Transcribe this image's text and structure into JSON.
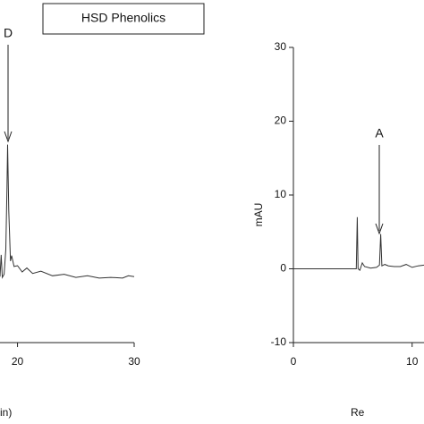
{
  "figure_title": "HSD Phenolics",
  "chart_data": [
    {
      "type": "line",
      "annotation": "D",
      "x_label": "in)",
      "x": [
        18.5,
        18.6,
        18.7,
        18.85,
        19.0,
        19.1,
        19.15,
        19.25,
        19.4,
        19.5,
        19.7,
        20.0,
        20.4,
        20.8,
        21.3,
        22,
        23,
        24,
        25,
        26,
        27,
        28,
        29,
        29.5,
        30
      ],
      "series": [
        {
          "color": "#333333",
          "values": [
            0.5,
            3.3,
            0.4,
            0.8,
            4,
            12,
            17.5,
            9,
            2.5,
            3.2,
            1.8,
            1.9,
            1.1,
            1.6,
            0.9,
            1.2,
            0.6,
            0.8,
            0.4,
            0.6,
            0.3,
            0.4,
            0.3,
            0.6,
            0.5
          ]
        }
      ],
      "xlim": [
        18.5,
        30
      ],
      "xticks": [
        20,
        30
      ],
      "ylim": [
        -8,
        30
      ]
    },
    {
      "type": "line",
      "annotation": "A",
      "x_label": "Re",
      "y_label": "mAU",
      "x": [
        0,
        5.3,
        5.38,
        5.45,
        5.6,
        5.8,
        6,
        6.5,
        7,
        7.25,
        7.35,
        7.45,
        7.7,
        8,
        8.5,
        9,
        9.5,
        10,
        10.5,
        11
      ],
      "series": [
        {
          "color": "#333333",
          "values": [
            0,
            0,
            7,
            0,
            -0.2,
            0.8,
            0.3,
            0.1,
            0.2,
            0.5,
            4.7,
            0.4,
            0.6,
            0.4,
            0.3,
            0.3,
            0.6,
            0.2,
            0.4,
            0.5
          ]
        }
      ],
      "xlim": [
        0,
        11
      ],
      "xticks": [
        0,
        10
      ],
      "ylim": [
        -10,
        30
      ],
      "yticks": [
        -10,
        0,
        10,
        20,
        30
      ]
    }
  ]
}
